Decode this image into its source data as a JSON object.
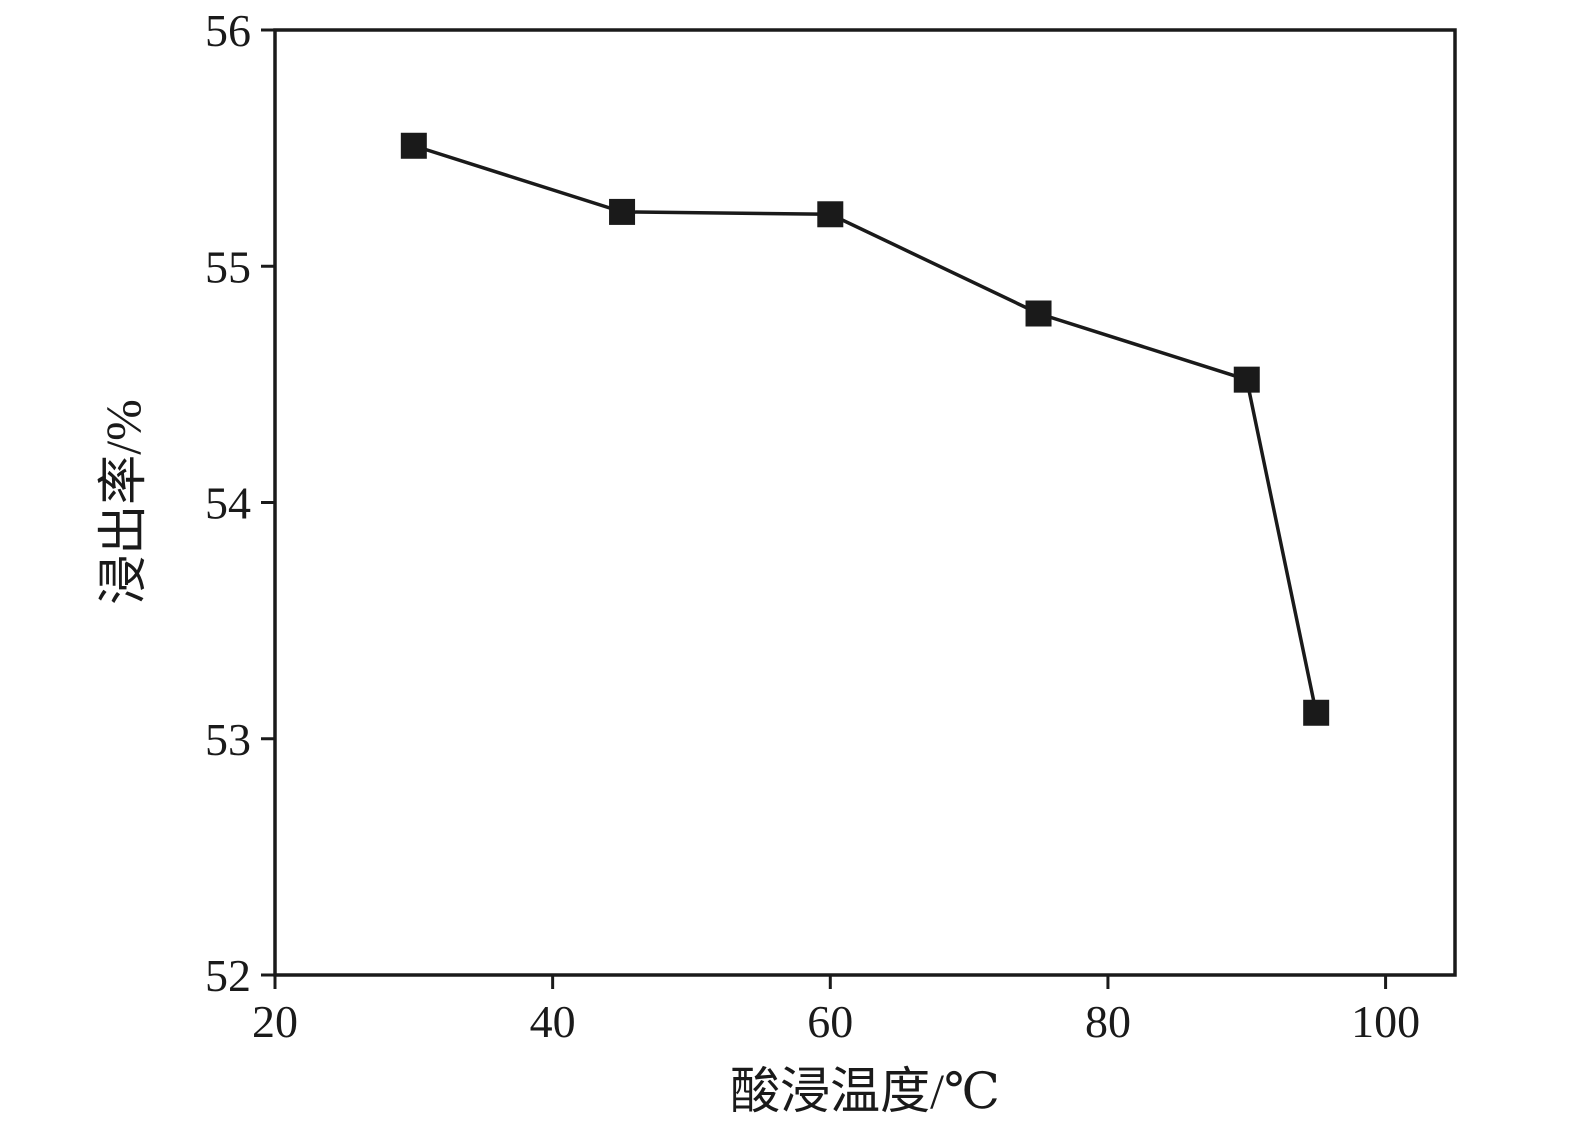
{
  "chart_data": {
    "type": "line",
    "title": "",
    "xlabel": "酸浸温度/℃",
    "ylabel": "浸出率/%",
    "xlim": [
      20,
      105
    ],
    "ylim": [
      52,
      56
    ],
    "xticks": [
      20,
      40,
      60,
      80,
      100
    ],
    "yticks": [
      52,
      53,
      54,
      55,
      56
    ],
    "grid": false,
    "legend": "none",
    "marker": "square",
    "series": [
      {
        "name": "浸出率",
        "x": [
          30,
          45,
          60,
          75,
          90,
          95
        ],
        "y": [
          55.51,
          55.23,
          55.22,
          54.8,
          54.52,
          53.11
        ]
      }
    ],
    "colors": {
      "line": "#1a1a1a",
      "marker": "#1a1a1a",
      "axis": "#1a1a1a",
      "background": "#ffffff"
    }
  }
}
